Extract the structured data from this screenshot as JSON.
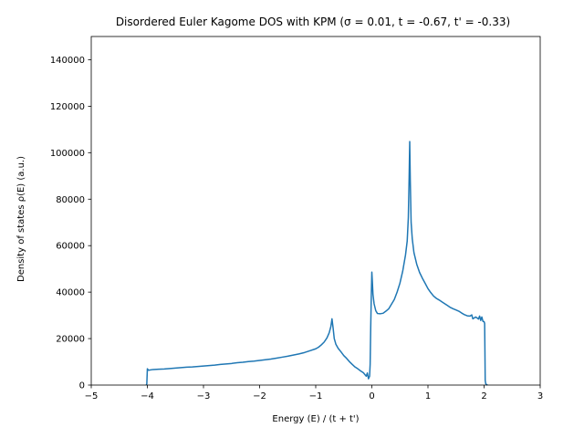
{
  "chart_data": {
    "type": "line",
    "title": "Disordered Euler Kagome DOS with KPM (σ = 0.01, t = -0.67, t' = -0.33)",
    "xlabel": "Energy (E) / (t + t')",
    "ylabel": "Density of states ρ(E) (a.u.)",
    "xlim": [
      -5,
      3
    ],
    "ylim": [
      0,
      150000
    ],
    "xticks": [
      -5,
      -4,
      -3,
      -2,
      -1,
      0,
      1,
      2,
      3
    ],
    "yticks": [
      0,
      20000,
      40000,
      60000,
      80000,
      100000,
      120000,
      140000
    ],
    "grid": false,
    "legend": "none",
    "series": [
      {
        "color": "#1f77b4",
        "points": [
          [
            -4.02,
            0
          ],
          [
            -4.01,
            500
          ],
          [
            -4.0,
            7000
          ],
          [
            -3.98,
            6400
          ],
          [
            -3.9,
            6700
          ],
          [
            -3.8,
            6800
          ],
          [
            -3.7,
            6900
          ],
          [
            -3.6,
            7100
          ],
          [
            -3.5,
            7300
          ],
          [
            -3.4,
            7500
          ],
          [
            -3.3,
            7700
          ],
          [
            -3.2,
            7800
          ],
          [
            -3.1,
            8000
          ],
          [
            -3.0,
            8200
          ],
          [
            -2.9,
            8400
          ],
          [
            -2.8,
            8600
          ],
          [
            -2.7,
            8900
          ],
          [
            -2.6,
            9100
          ],
          [
            -2.5,
            9300
          ],
          [
            -2.4,
            9600
          ],
          [
            -2.3,
            9800
          ],
          [
            -2.2,
            10100
          ],
          [
            -2.1,
            10300
          ],
          [
            -2.0,
            10600
          ],
          [
            -1.9,
            10900
          ],
          [
            -1.8,
            11200
          ],
          [
            -1.7,
            11600
          ],
          [
            -1.6,
            12000
          ],
          [
            -1.5,
            12400
          ],
          [
            -1.4,
            12900
          ],
          [
            -1.3,
            13400
          ],
          [
            -1.2,
            14000
          ],
          [
            -1.1,
            14800
          ],
          [
            -1.0,
            15600
          ],
          [
            -0.95,
            16300
          ],
          [
            -0.9,
            17300
          ],
          [
            -0.85,
            18500
          ],
          [
            -0.8,
            20300
          ],
          [
            -0.76,
            22500
          ],
          [
            -0.73,
            25200
          ],
          [
            -0.71,
            28500
          ],
          [
            -0.69,
            24500
          ],
          [
            -0.67,
            20000
          ],
          [
            -0.64,
            17500
          ],
          [
            -0.6,
            15800
          ],
          [
            -0.55,
            14300
          ],
          [
            -0.5,
            12700
          ],
          [
            -0.45,
            11500
          ],
          [
            -0.4,
            10100
          ],
          [
            -0.35,
            8900
          ],
          [
            -0.3,
            7800
          ],
          [
            -0.25,
            7000
          ],
          [
            -0.2,
            6100
          ],
          [
            -0.15,
            5300
          ],
          [
            -0.12,
            4400
          ],
          [
            -0.1,
            3800
          ],
          [
            -0.08,
            5200
          ],
          [
            -0.06,
            2700
          ],
          [
            -0.04,
            3800
          ],
          [
            -0.03,
            9000
          ],
          [
            -0.02,
            25000
          ],
          [
            -0.01,
            38000
          ],
          [
            0.0,
            48600
          ],
          [
            0.01,
            44000
          ],
          [
            0.02,
            39000
          ],
          [
            0.04,
            35000
          ],
          [
            0.07,
            32000
          ],
          [
            0.1,
            30800
          ],
          [
            0.15,
            30700
          ],
          [
            0.2,
            30900
          ],
          [
            0.25,
            31800
          ],
          [
            0.3,
            32800
          ],
          [
            0.35,
            34800
          ],
          [
            0.4,
            36800
          ],
          [
            0.45,
            40000
          ],
          [
            0.5,
            43800
          ],
          [
            0.55,
            49000
          ],
          [
            0.6,
            56000
          ],
          [
            0.63,
            62000
          ],
          [
            0.65,
            72000
          ],
          [
            0.665,
            90000
          ],
          [
            0.675,
            104800
          ],
          [
            0.685,
            88000
          ],
          [
            0.7,
            70000
          ],
          [
            0.72,
            63000
          ],
          [
            0.75,
            57000
          ],
          [
            0.8,
            52000
          ],
          [
            0.85,
            48500
          ],
          [
            0.9,
            46000
          ],
          [
            0.95,
            43800
          ],
          [
            1.0,
            41500
          ],
          [
            1.05,
            39800
          ],
          [
            1.1,
            38300
          ],
          [
            1.15,
            37300
          ],
          [
            1.2,
            36600
          ],
          [
            1.25,
            35800
          ],
          [
            1.3,
            35000
          ],
          [
            1.35,
            34200
          ],
          [
            1.4,
            33400
          ],
          [
            1.45,
            32800
          ],
          [
            1.5,
            32300
          ],
          [
            1.55,
            31800
          ],
          [
            1.6,
            31000
          ],
          [
            1.65,
            30300
          ],
          [
            1.7,
            29800
          ],
          [
            1.75,
            29700
          ],
          [
            1.78,
            30200
          ],
          [
            1.8,
            28500
          ],
          [
            1.85,
            29300
          ],
          [
            1.88,
            28800
          ],
          [
            1.9,
            28400
          ],
          [
            1.92,
            29700
          ],
          [
            1.94,
            27800
          ],
          [
            1.96,
            29300
          ],
          [
            1.98,
            27400
          ],
          [
            2.0,
            27300
          ],
          [
            2.01,
            26500
          ],
          [
            2.015,
            15000
          ],
          [
            2.02,
            2000
          ],
          [
            2.03,
            500
          ],
          [
            2.06,
            0
          ]
        ]
      }
    ]
  }
}
